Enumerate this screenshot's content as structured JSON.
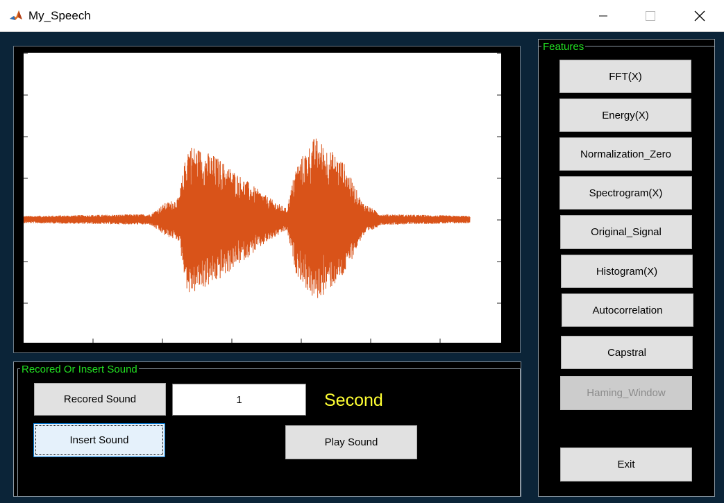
{
  "window": {
    "title": "My_Speech",
    "icon": "matlab-icon"
  },
  "axes": {
    "line_color": "#d95319",
    "chart_data": {
      "type": "line",
      "title": "",
      "xlabel": "",
      "ylabel": "",
      "description": "speech waveform with two loud syllables",
      "ylim": [
        -1,
        1
      ],
      "envelope": [
        {
          "x": 0.0,
          "y": 0.04
        },
        {
          "x": 0.27,
          "y": 0.06
        },
        {
          "x": 0.3,
          "y": 0.18
        },
        {
          "x": 0.33,
          "y": 0.24
        },
        {
          "x": 0.35,
          "y": 0.85
        },
        {
          "x": 0.41,
          "y": 0.7
        },
        {
          "x": 0.47,
          "y": 0.45
        },
        {
          "x": 0.52,
          "y": 0.25
        },
        {
          "x": 0.56,
          "y": 0.12
        },
        {
          "x": 0.58,
          "y": 0.6
        },
        {
          "x": 0.62,
          "y": 0.92
        },
        {
          "x": 0.68,
          "y": 0.65
        },
        {
          "x": 0.72,
          "y": 0.2
        },
        {
          "x": 0.76,
          "y": 0.06
        },
        {
          "x": 0.95,
          "y": 0.04
        }
      ]
    }
  },
  "record_panel": {
    "title": "Recored Or Insert Sound",
    "recored_label": "Recored Sound",
    "duration_value": "1",
    "unit_label": "Second",
    "insert_label": "Insert Sound",
    "play_label": "Play Sound"
  },
  "features_panel": {
    "title": "Features",
    "buttons": [
      {
        "label": "FFT(X)"
      },
      {
        "label": "Energy(X)"
      },
      {
        "label": "Normalization_Zero"
      },
      {
        "label": "Spectrogram(X)"
      },
      {
        "label": "Original_Signal"
      },
      {
        "label": "Histogram(X)"
      },
      {
        "label": "Autocorrelation"
      },
      {
        "label": "Capstral"
      },
      {
        "label": "Haming_Window",
        "enabled": false
      }
    ],
    "exit_label": "Exit"
  }
}
